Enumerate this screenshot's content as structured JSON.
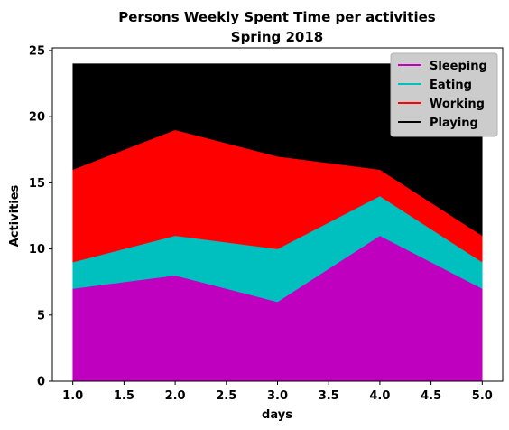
{
  "chart_data": {
    "type": "area",
    "stacked": true,
    "title": "Persons Weekly Spent Time per activities",
    "subtitle": "Spring 2018",
    "xlabel": "days",
    "ylabel": "Activities",
    "x": [
      1,
      2,
      3,
      4,
      5
    ],
    "xlim": [
      0.8,
      5.2
    ],
    "ylim": [
      0,
      25.2
    ],
    "xticks": [
      "1.0",
      "1.5",
      "2.0",
      "2.5",
      "3.0",
      "3.5",
      "4.0",
      "4.5",
      "5.0"
    ],
    "yticks": [
      "0",
      "5",
      "10",
      "15",
      "20",
      "25"
    ],
    "grid": false,
    "legend_position": "top-right",
    "series": [
      {
        "name": "Sleeping",
        "color": "#bf00bf",
        "values": [
          7,
          8,
          6,
          11,
          7
        ]
      },
      {
        "name": "Eating",
        "color": "#00bfbf",
        "values": [
          2,
          3,
          4,
          3,
          2
        ]
      },
      {
        "name": "Working",
        "color": "#ff0000",
        "values": [
          7,
          8,
          7,
          2,
          2
        ]
      },
      {
        "name": "Playing",
        "color": "#000000",
        "values": [
          8,
          5,
          7,
          8,
          13
        ]
      }
    ]
  }
}
